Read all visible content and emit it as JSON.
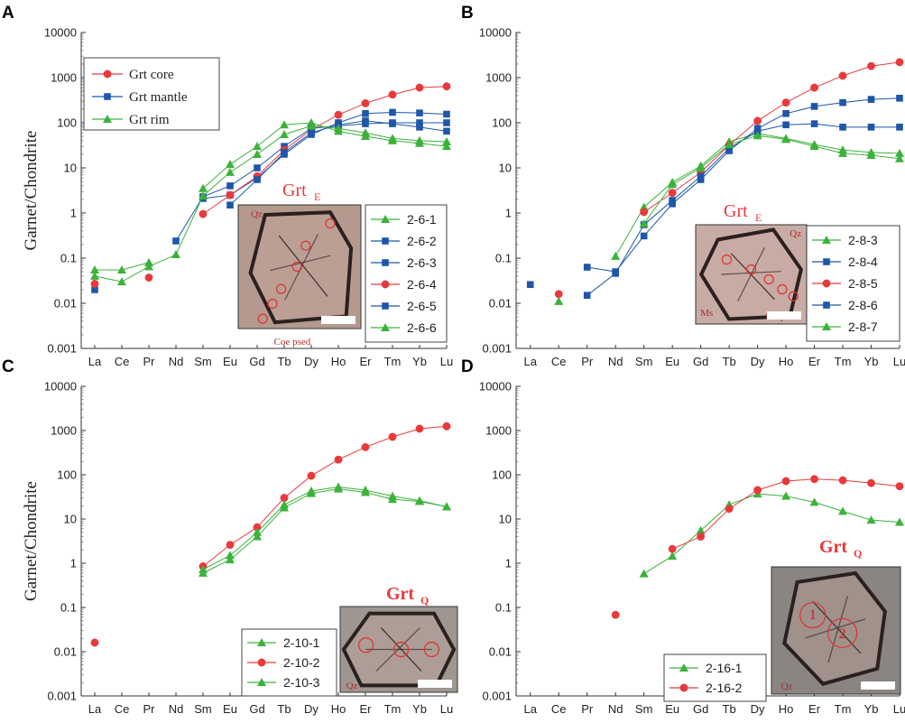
{
  "figure": {
    "ylabel": "Garnet/Chondrite",
    "elements": [
      "La",
      "Ce",
      "Pr",
      "Nd",
      "Sm",
      "Eu",
      "Gd",
      "Tb",
      "Dy",
      "Ho",
      "Er",
      "Tm",
      "Yb",
      "Lu"
    ],
    "ytick_labels": [
      "10000",
      "1000",
      "100",
      "10",
      "1",
      "0.1",
      "0.01",
      "0.001"
    ],
    "colors": {
      "core": "#e8393c",
      "mantle": "#1f56a8",
      "rim": "#3bb23b"
    }
  },
  "chart_data": [
    {
      "panel": "A",
      "type": "line",
      "yscale": "log",
      "ylim": [
        0.001,
        10000
      ],
      "xlabel": "",
      "ylabel": "Garnet/Chondrite",
      "categories": [
        "La",
        "Ce",
        "Pr",
        "Nd",
        "Sm",
        "Eu",
        "Gd",
        "Tb",
        "Dy",
        "Ho",
        "Er",
        "Tm",
        "Yb",
        "Lu"
      ],
      "inset_title": "Grt",
      "inset_title_sub": "E",
      "photo_labels": [
        "Qz",
        "Omp",
        "Coe psed"
      ],
      "type_legend": [
        {
          "label": "Grt core",
          "marker": "circle",
          "color": "#e8393c"
        },
        {
          "label": "Grt mantle",
          "marker": "square",
          "color": "#1f56a8"
        },
        {
          "label": "Grt rim",
          "marker": "triangle",
          "color": "#3bb23b"
        }
      ],
      "series": [
        {
          "name": "2-6-1",
          "marker": "triangle",
          "color": "#3bb23b",
          "values": [
            0.055,
            0.055,
            0.08,
            null,
            3.5,
            12,
            30,
            90,
            100,
            65,
            50,
            40,
            35,
            30
          ]
        },
        {
          "name": "2-6-2",
          "marker": "square",
          "color": "#1f56a8",
          "values": [
            0.02,
            null,
            null,
            0.24,
            2.3,
            4,
            10,
            30,
            75,
            85,
            95,
            100,
            100,
            100
          ]
        },
        {
          "name": "2-6-3",
          "marker": "square",
          "color": "#1f56a8",
          "values": [
            null,
            null,
            null,
            null,
            2.1,
            2.5,
            6,
            20,
            55,
            100,
            160,
            170,
            165,
            155
          ]
        },
        {
          "name": "2-6-4",
          "marker": "circle",
          "color": "#e8393c",
          "values": [
            0.027,
            null,
            0.037,
            null,
            0.95,
            2.5,
            6.5,
            25,
            70,
            150,
            270,
            420,
            600,
            640
          ]
        },
        {
          "name": "2-6-5",
          "marker": "square",
          "color": "#1f56a8",
          "values": [
            null,
            null,
            null,
            null,
            null,
            1.5,
            5.5,
            22,
            60,
            90,
            110,
            95,
            80,
            65
          ]
        },
        {
          "name": "2-6-6",
          "marker": "triangle",
          "color": "#3bb23b",
          "values": [
            0.04,
            0.03,
            0.065,
            0.12,
            2.4,
            8,
            20,
            55,
            85,
            75,
            60,
            45,
            40,
            38
          ]
        }
      ]
    },
    {
      "panel": "B",
      "type": "line",
      "yscale": "log",
      "ylim": [
        0.001,
        10000
      ],
      "xlabel": "",
      "ylabel": "",
      "categories": [
        "La",
        "Ce",
        "Pr",
        "Nd",
        "Sm",
        "Eu",
        "Gd",
        "Tb",
        "Dy",
        "Ho",
        "Er",
        "Tm",
        "Yb",
        "Lu"
      ],
      "inset_title": "Grt",
      "inset_title_sub": "E",
      "photo_labels": [
        "Qz",
        "Omp",
        "Ms"
      ],
      "series": [
        {
          "name": "2-8-3",
          "marker": "triangle",
          "color": "#3bb23b",
          "values": [
            null,
            0.011,
            null,
            0.11,
            1.35,
            4.8,
            11,
            38,
            58,
            45,
            33,
            25,
            22,
            21
          ]
        },
        {
          "name": "2-8-4",
          "marker": "square",
          "color": "#1f56a8",
          "values": [
            null,
            null,
            0.063,
            0.05,
            0.31,
            1.6,
            5.5,
            24,
            75,
            160,
            230,
            280,
            330,
            350
          ]
        },
        {
          "name": "2-8-5",
          "marker": "circle",
          "color": "#e8393c",
          "values": [
            null,
            0.016,
            null,
            null,
            1.05,
            2.8,
            8,
            32,
            110,
            280,
            600,
            1100,
            1800,
            2200
          ]
        },
        {
          "name": "2-8-6",
          "marker": "square",
          "color": "#1f56a8",
          "values": [
            0.026,
            null,
            0.015,
            0.046,
            0.55,
            1.9,
            6.5,
            27,
            65,
            90,
            95,
            80,
            80,
            80
          ]
        },
        {
          "name": "2-8-7",
          "marker": "triangle",
          "color": "#3bb23b",
          "values": [
            null,
            null,
            null,
            null,
            0.58,
            4.3,
            10,
            33,
            52,
            43,
            30,
            21,
            19,
            16
          ]
        }
      ]
    },
    {
      "panel": "C",
      "type": "line",
      "yscale": "log",
      "ylim": [
        0.001,
        10000
      ],
      "xlabel": "",
      "ylabel": "Garnet/Chondrite",
      "categories": [
        "La",
        "Ce",
        "Pr",
        "Nd",
        "Sm",
        "Eu",
        "Gd",
        "Tb",
        "Dy",
        "Ho",
        "Er",
        "Tm",
        "Yb",
        "Lu"
      ],
      "inset_title": "Grt",
      "inset_title_sub": "Q",
      "photo_labels": [
        "Qz"
      ],
      "series": [
        {
          "name": "2-10-1",
          "marker": "triangle",
          "color": "#3bb23b",
          "values": [
            null,
            null,
            null,
            null,
            0.6,
            1.2,
            4,
            18,
            38,
            48,
            40,
            28,
            25,
            19
          ]
        },
        {
          "name": "2-10-2",
          "marker": "circle",
          "color": "#e8393c",
          "values": [
            0.016,
            null,
            null,
            null,
            0.85,
            2.6,
            6.5,
            30,
            95,
            220,
            420,
            720,
            1100,
            1250
          ]
        },
        {
          "name": "2-10-3",
          "marker": "triangle",
          "color": "#3bb23b",
          "values": [
            null,
            null,
            null,
            null,
            0.72,
            1.5,
            5,
            21,
            43,
            53,
            45,
            33,
            26,
            19
          ]
        }
      ]
    },
    {
      "panel": "D",
      "type": "line",
      "yscale": "log",
      "ylim": [
        0.001,
        10000
      ],
      "xlabel": "",
      "ylabel": "",
      "categories": [
        "La",
        "Ce",
        "Pr",
        "Nd",
        "Sm",
        "Eu",
        "Gd",
        "Tb",
        "Dy",
        "Ho",
        "Er",
        "Tm",
        "Yb",
        "Lu"
      ],
      "inset_title": "Grt",
      "inset_title_sub": "Q",
      "photo_labels": [
        "1",
        "2",
        "Qz"
      ],
      "series": [
        {
          "name": "2-16-1",
          "marker": "triangle",
          "color": "#3bb23b",
          "values": [
            null,
            null,
            null,
            null,
            0.58,
            1.45,
            5.5,
            21,
            37,
            33,
            24,
            15,
            9.5,
            8.5
          ]
        },
        {
          "name": "2-16-2",
          "marker": "circle",
          "color": "#e8393c",
          "values": [
            null,
            null,
            null,
            0.068,
            null,
            2.1,
            4,
            17,
            45,
            72,
            80,
            75,
            65,
            55
          ]
        }
      ]
    }
  ]
}
